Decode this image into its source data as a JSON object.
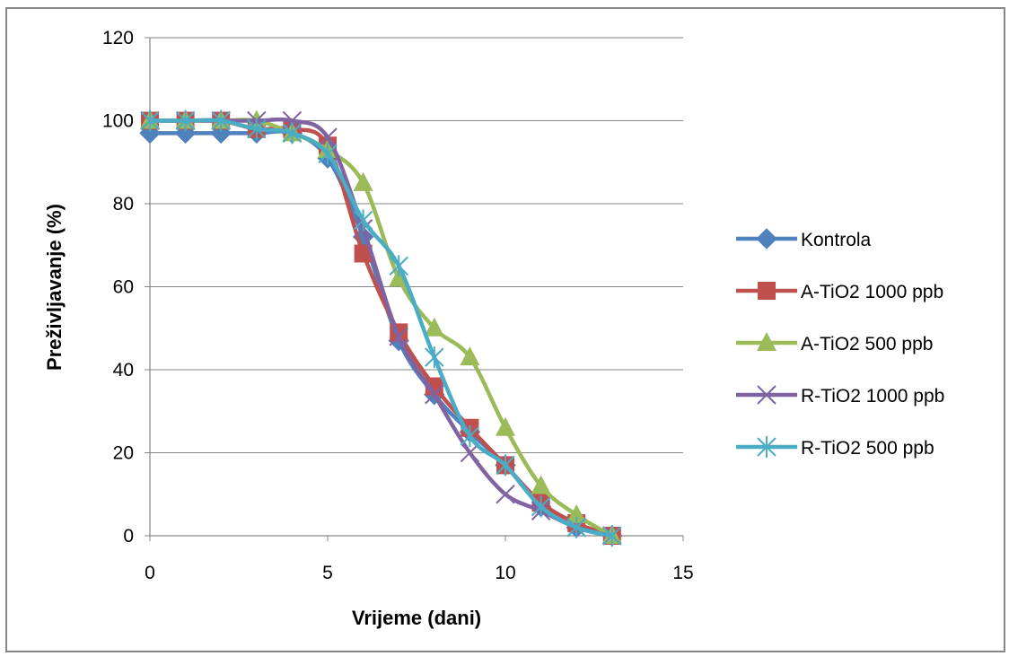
{
  "chart_data": {
    "type": "line",
    "title": "",
    "xlabel": "Vrijeme (dani)",
    "ylabel": "Preživljavanje (%)",
    "xlim": [
      0,
      15
    ],
    "ylim": [
      0,
      120
    ],
    "xticks": [
      0,
      5,
      10,
      15
    ],
    "yticks": [
      0,
      20,
      40,
      60,
      80,
      100,
      120
    ],
    "grid": "horizontal",
    "legend_position": "right",
    "smooth": true,
    "series": [
      {
        "name": "Kontrola",
        "color": "#4F81BD",
        "marker": "diamond",
        "x": [
          0,
          1,
          2,
          3,
          4,
          5,
          6,
          7,
          8,
          9,
          10,
          11,
          12,
          13
        ],
        "y": [
          97,
          97,
          97,
          97,
          97,
          91,
          72,
          47,
          34,
          25,
          17,
          7,
          2,
          0
        ]
      },
      {
        "name": "A-TiO2 1000 ppb",
        "color": "#C0504D",
        "marker": "square",
        "x": [
          0,
          1,
          2,
          3,
          4,
          5,
          6,
          7,
          8,
          9,
          10,
          11,
          12,
          13
        ],
        "y": [
          100,
          100,
          100,
          98,
          98,
          94,
          68,
          49,
          36,
          26,
          17,
          8,
          3,
          0
        ]
      },
      {
        "name": "A-TiO2 500 ppb",
        "color": "#9BBB59",
        "marker": "triangle",
        "x": [
          0,
          1,
          2,
          3,
          4,
          5,
          6,
          7,
          8,
          9,
          10,
          11,
          12,
          13
        ],
        "y": [
          100,
          100,
          100,
          100,
          97,
          93,
          85,
          62,
          50,
          43,
          26,
          12,
          5,
          0
        ]
      },
      {
        "name": "R-TiO2 1000 ppb",
        "color": "#8064A2",
        "marker": "x",
        "x": [
          0,
          1,
          2,
          3,
          4,
          5,
          6,
          7,
          8,
          9,
          10,
          11,
          12,
          13
        ],
        "y": [
          100,
          100,
          100,
          100,
          100,
          96,
          74,
          48,
          34,
          20,
          10,
          6,
          2,
          0
        ]
      },
      {
        "name": "R-TiO2 500 ppb",
        "color": "#4BACC6",
        "marker": "star",
        "x": [
          0,
          1,
          2,
          3,
          4,
          5,
          6,
          7,
          8,
          9,
          10,
          11,
          12,
          13
        ],
        "y": [
          100,
          100,
          100,
          98,
          97,
          92,
          76,
          65,
          43,
          24,
          17,
          7,
          2,
          0
        ]
      }
    ]
  }
}
